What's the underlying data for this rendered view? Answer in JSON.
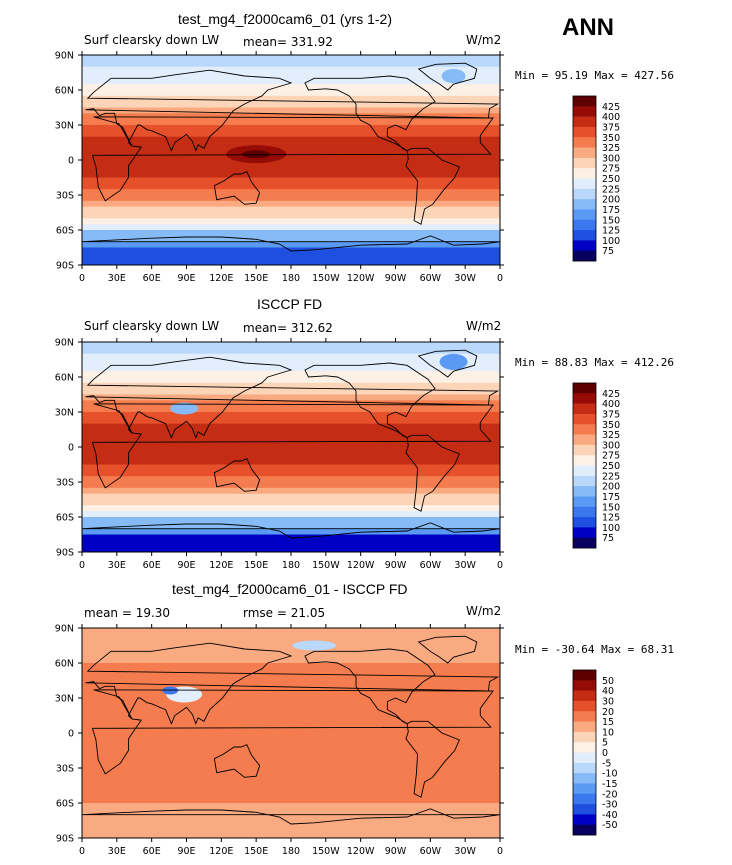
{
  "season": "ANN",
  "panels": [
    {
      "title": "test_mg4_f2000cam6_01 (yrs 1-2)",
      "left": "Surf clearsky down LW",
      "mid": "mean= 331.92",
      "units": "W/m2",
      "minmax": "Min =  95.19 Max = 427.56",
      "colorbar": [
        "425",
        "400",
        "375",
        "350",
        "325",
        "300",
        "275",
        "250",
        "225",
        "200",
        "175",
        "150",
        "125",
        "100",
        "75"
      ]
    },
    {
      "title": "ISCCP FD",
      "left": "Surf clearsky down LW",
      "mid": "mean= 312.62",
      "units": "W/m2",
      "minmax": "Min =  88.83 Max = 412.26",
      "colorbar": [
        "425",
        "400",
        "375",
        "350",
        "325",
        "300",
        "275",
        "250",
        "225",
        "200",
        "175",
        "150",
        "125",
        "100",
        "75"
      ]
    },
    {
      "title": "test_mg4_f2000cam6_01 - ISCCP FD",
      "left": "mean =  19.30",
      "mid": "rmse =  21.05",
      "units": "W/m2",
      "minmax": "Min = -30.64 Max =  68.31",
      "colorbar": [
        "50",
        "40",
        "30",
        "20",
        "15",
        "10",
        "5",
        "0",
        "-5",
        "-10",
        "-15",
        "-20",
        "-30",
        "-40",
        "-50"
      ]
    }
  ],
  "lat_labels": [
    "90N",
    "60N",
    "30N",
    "0",
    "30S",
    "60S",
    "90S"
  ],
  "lon_labels": [
    "0",
    "30E",
    "60E",
    "90E",
    "120E",
    "150E",
    "180",
    "150W",
    "120W",
    "90W",
    "60W",
    "30W",
    "0"
  ],
  "colors": {
    "abs": [
      "#08005e",
      "#0000c4",
      "#1f4fe0",
      "#3b78f0",
      "#5a9af5",
      "#87bbf8",
      "#b9d8fb",
      "#e3eefc",
      "#fdf1e5",
      "#fcd5b8",
      "#f9aa80",
      "#f47c4e",
      "#e6502a",
      "#c42d14",
      "#960b06",
      "#5e0000"
    ],
    "diff": [
      "#08005e",
      "#0000c4",
      "#1f4fe0",
      "#3b78f0",
      "#5a9af5",
      "#87bbf8",
      "#b9d8fb",
      "#e3eefc",
      "#fdf1e5",
      "#fcd5b8",
      "#f9aa80",
      "#f47c4e",
      "#e6502a",
      "#c42d14",
      "#960b06",
      "#5e0000"
    ]
  }
}
